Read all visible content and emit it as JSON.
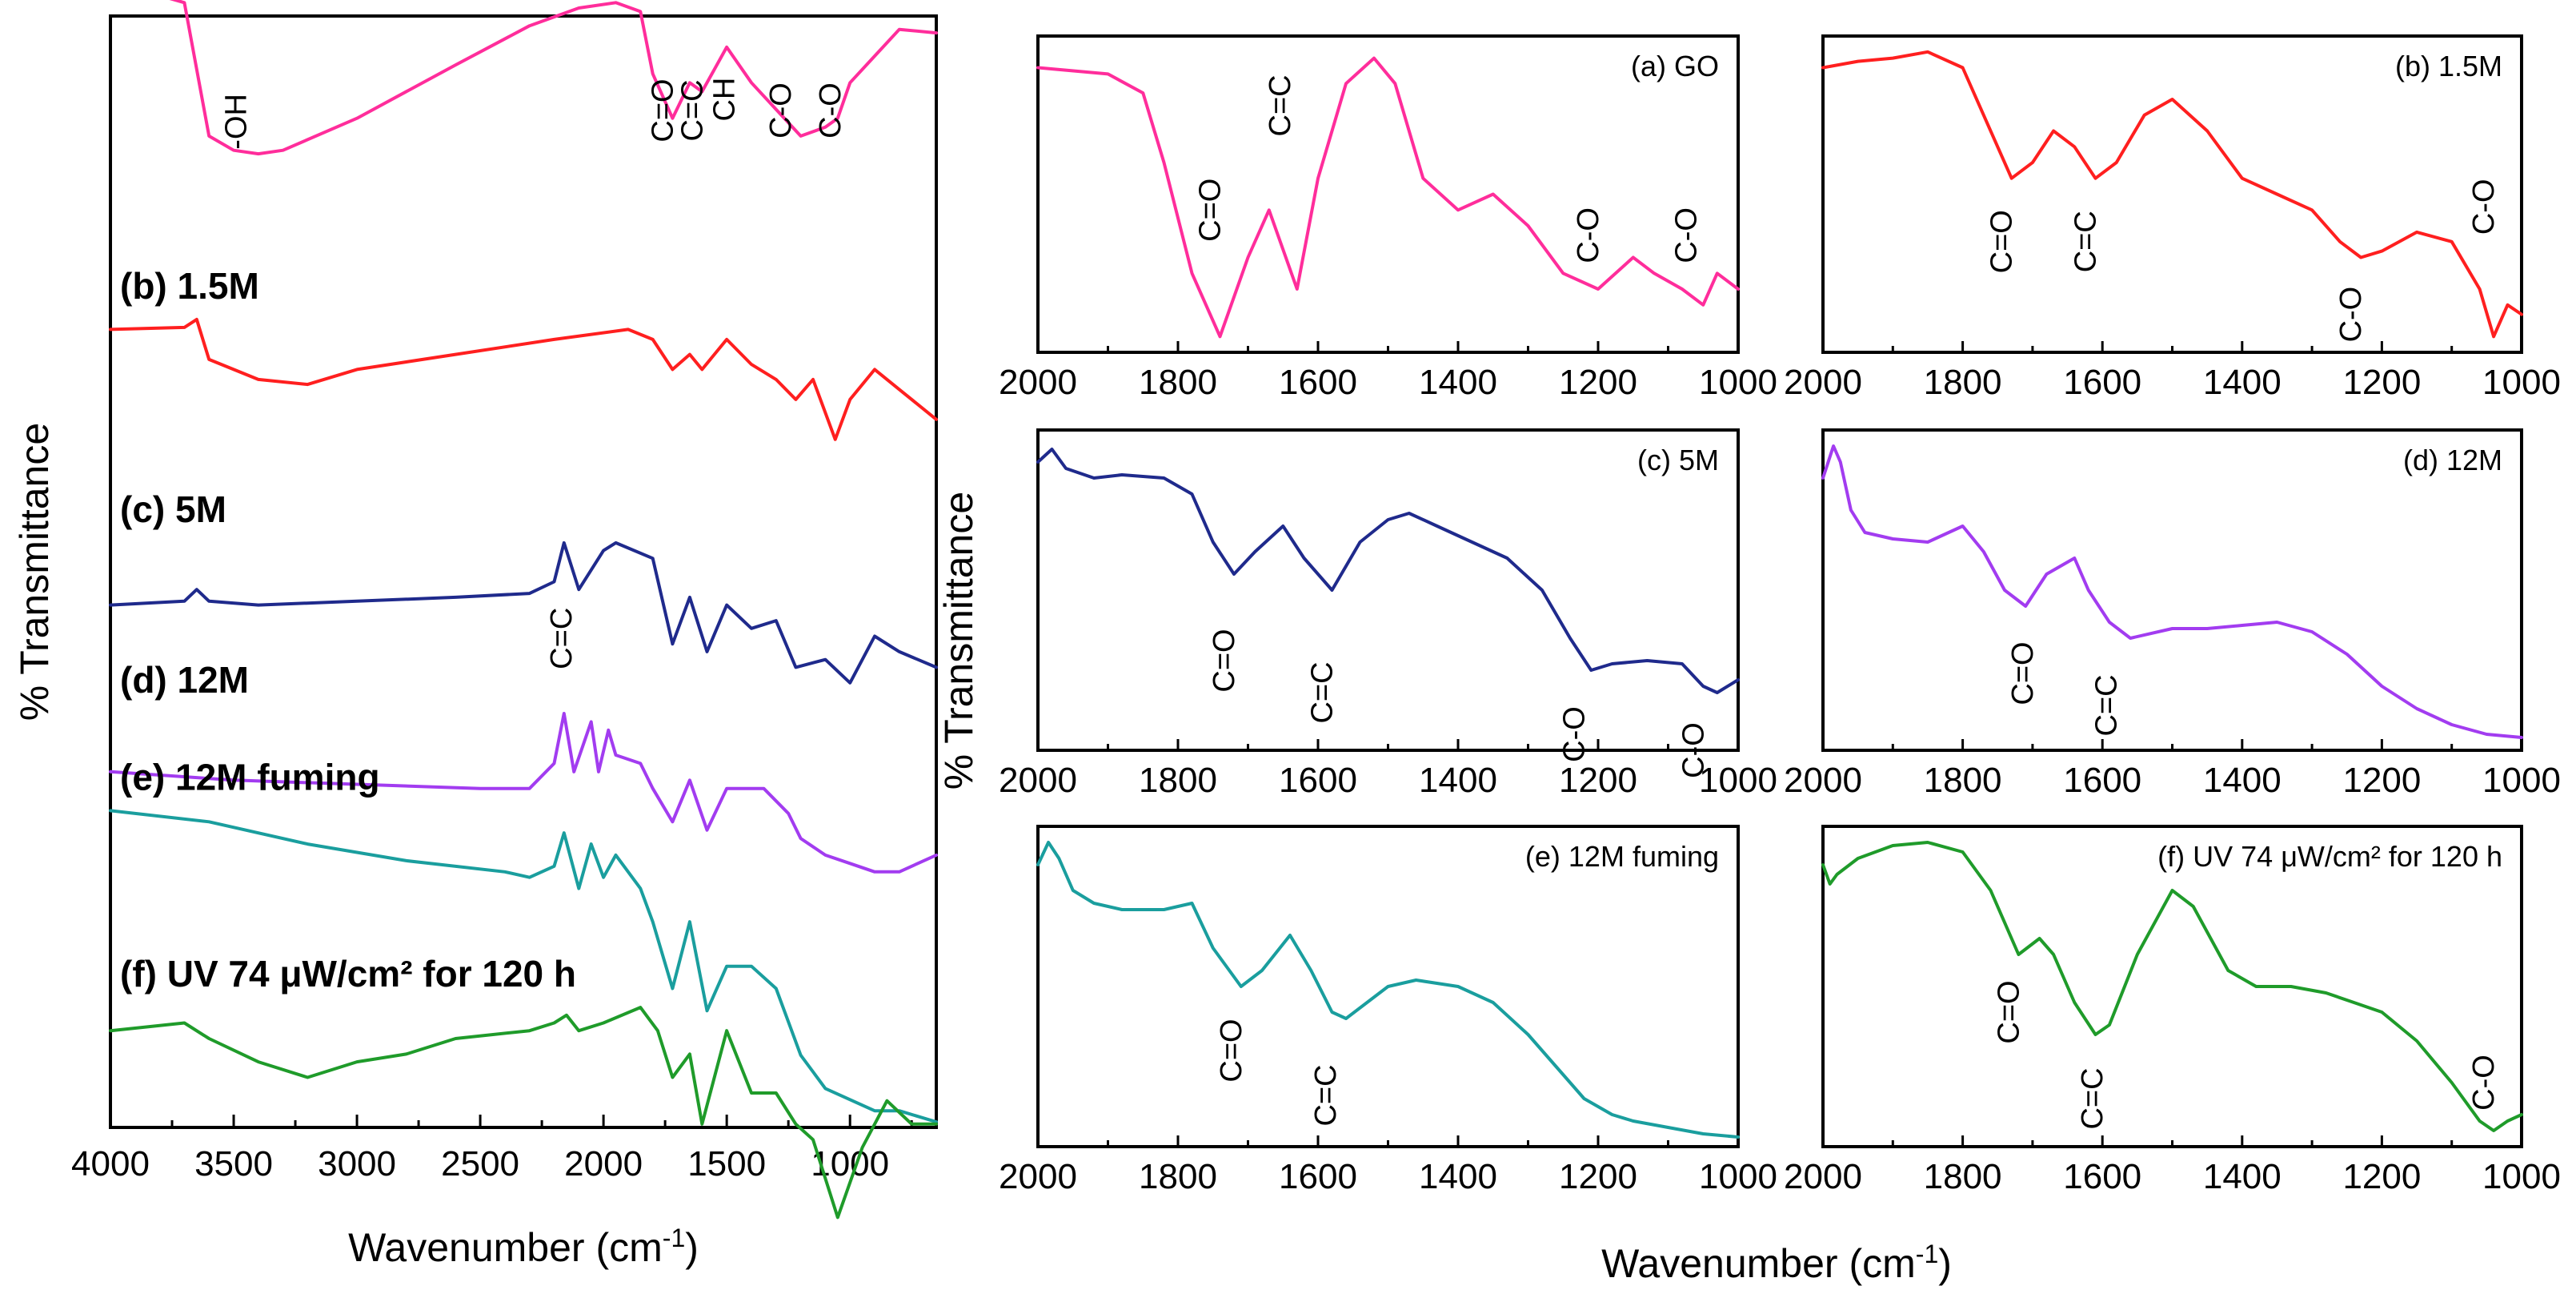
{
  "colors": {
    "a": "#ff2d9b",
    "b": "#ff1f1f",
    "c": "#1f2a8c",
    "d": "#a23cf0",
    "e": "#1a9e9e",
    "f": "#1f9b2a"
  },
  "chart_data": [
    {
      "type": "line",
      "title": "",
      "xlabel": "Wavenumber (cm",
      "xlabel_sup": "-1",
      "xlabel_close": ")",
      "ylabel": "% Transmittance",
      "xlim": [
        4000,
        650
      ],
      "xticks": [
        "4000",
        "3500",
        "3000",
        "2500",
        "2000",
        "1500",
        "1000"
      ],
      "series": [
        {
          "key": "a",
          "name": "(a) GO",
          "offset": 0.86,
          "scale": 0.16,
          "annotations": [
            "-OH",
            "C=O",
            "C=C",
            "CH",
            "C-O",
            "C-O"
          ],
          "x": [
            4000,
            3800,
            3700,
            3600,
            3500,
            3400,
            3300,
            3000,
            2600,
            2300,
            2100,
            1950,
            1850,
            1800,
            1720,
            1650,
            1600,
            1500,
            1400,
            1300,
            1200,
            1100,
            1050,
            1000,
            900,
            800,
            650
          ],
          "y": [
            1.0,
            0.99,
            0.95,
            0.2,
            0.12,
            0.1,
            0.12,
            0.3,
            0.6,
            0.82,
            0.92,
            0.95,
            0.9,
            0.55,
            0.3,
            0.5,
            0.45,
            0.7,
            0.5,
            0.35,
            0.2,
            0.25,
            0.3,
            0.5,
            0.65,
            0.8,
            0.78
          ]
        },
        {
          "key": "b",
          "name": "(b) 1.5M",
          "offset": 0.655,
          "scale": 0.09,
          "annotations": [],
          "x": [
            4000,
            3700,
            3650,
            3600,
            3400,
            3200,
            3000,
            2600,
            2200,
            1900,
            1800,
            1720,
            1650,
            1600,
            1500,
            1400,
            1300,
            1220,
            1150,
            1060,
            1000,
            900,
            800,
            650
          ],
          "y": [
            0.7,
            0.72,
            0.8,
            0.4,
            0.2,
            0.15,
            0.3,
            0.45,
            0.6,
            0.7,
            0.6,
            0.3,
            0.45,
            0.3,
            0.6,
            0.35,
            0.2,
            0.0,
            0.2,
            -0.4,
            0.0,
            0.3,
            0.1,
            -0.2
          ]
        },
        {
          "key": "c",
          "name": "(c) 5M",
          "offset": 0.47,
          "scale": 0.07,
          "annotations": [
            "C=C"
          ],
          "x": [
            4000,
            3700,
            3650,
            3600,
            3400,
            3000,
            2600,
            2300,
            2200,
            2160,
            2100,
            2000,
            1950,
            1800,
            1720,
            1650,
            1580,
            1500,
            1400,
            1300,
            1220,
            1100,
            1000,
            900,
            800,
            650
          ],
          "y": [
            0.0,
            0.05,
            0.2,
            0.05,
            0.0,
            0.05,
            0.1,
            0.15,
            0.3,
            0.8,
            0.2,
            0.7,
            0.8,
            0.6,
            -0.5,
            0.1,
            -0.6,
            0.0,
            -0.3,
            -0.2,
            -0.8,
            -0.7,
            -1.0,
            -0.4,
            -0.6,
            -0.8
          ]
        },
        {
          "key": "d",
          "name": "(d) 12M",
          "offset": 0.305,
          "scale": 0.075,
          "annotations": [],
          "x": [
            4000,
            3500,
            3000,
            2500,
            2300,
            2200,
            2160,
            2120,
            2050,
            2020,
            1980,
            1950,
            1850,
            1800,
            1720,
            1650,
            1580,
            1500,
            1350,
            1250,
            1200,
            1100,
            1000,
            900,
            800,
            650
          ],
          "y": [
            0.2,
            0.1,
            0.05,
            0.0,
            0.0,
            0.3,
            0.9,
            0.2,
            0.8,
            0.2,
            0.7,
            0.4,
            0.3,
            0.0,
            -0.4,
            0.1,
            -0.5,
            0.0,
            0.0,
            -0.3,
            -0.6,
            -0.8,
            -0.9,
            -1.0,
            -1.0,
            -0.8
          ]
        },
        {
          "key": "e",
          "name": "(e) 12M fuming",
          "offset": 0.185,
          "scale": 0.1,
          "annotations": [],
          "x": [
            4000,
            3600,
            3200,
            2800,
            2400,
            2300,
            2200,
            2160,
            2100,
            2050,
            2000,
            1950,
            1850,
            1800,
            1720,
            1650,
            1580,
            1500,
            1400,
            1300,
            1200,
            1100,
            1000,
            900,
            800,
            650
          ],
          "y": [
            1.0,
            0.9,
            0.7,
            0.55,
            0.45,
            0.4,
            0.5,
            0.8,
            0.3,
            0.7,
            0.4,
            0.6,
            0.3,
            0.0,
            -0.6,
            0.0,
            -0.8,
            -0.4,
            -0.4,
            -0.6,
            -1.2,
            -1.5,
            -1.6,
            -1.7,
            -1.7,
            -1.8
          ]
        },
        {
          "key": "f",
          "name": "(f) UV 74 μW/cm² for 120 h",
          "offset": 0.045,
          "scale": 0.07,
          "annotations": [],
          "x": [
            4000,
            3700,
            3600,
            3400,
            3200,
            3000,
            2800,
            2600,
            2300,
            2200,
            2150,
            2100,
            2000,
            1850,
            1780,
            1720,
            1650,
            1600,
            1500,
            1400,
            1300,
            1220,
            1150,
            1050,
            950,
            850,
            750,
            650
          ],
          "y": [
            0.6,
            0.7,
            0.5,
            0.2,
            0.0,
            0.2,
            0.3,
            0.5,
            0.6,
            0.7,
            0.8,
            0.6,
            0.7,
            0.9,
            0.6,
            0.0,
            0.3,
            -0.6,
            0.6,
            -0.2,
            -0.2,
            -0.6,
            -0.8,
            -1.8,
            -0.9,
            -0.3,
            -0.6,
            -0.6
          ]
        }
      ]
    },
    {
      "type": "line",
      "title": "(a) GO",
      "series_key": "a",
      "xlim": [
        2000,
        1000
      ],
      "xticks": [
        "2000",
        "1800",
        "1600",
        "1400",
        "1200",
        "1000"
      ],
      "annotations": [
        "C=O",
        "C=C",
        "C-O",
        "C-O"
      ],
      "x": [
        2000,
        1900,
        1850,
        1820,
        1780,
        1740,
        1700,
        1670,
        1630,
        1600,
        1560,
        1520,
        1490,
        1450,
        1400,
        1350,
        1300,
        1250,
        1200,
        1150,
        1120,
        1080,
        1050,
        1030,
        1000
      ],
      "y": [
        0.9,
        0.88,
        0.82,
        0.6,
        0.25,
        0.05,
        0.3,
        0.45,
        0.2,
        0.55,
        0.85,
        0.93,
        0.85,
        0.55,
        0.45,
        0.5,
        0.4,
        0.25,
        0.2,
        0.3,
        0.25,
        0.2,
        0.15,
        0.25,
        0.2
      ]
    },
    {
      "type": "line",
      "title": "(b) 1.5M",
      "series_key": "b",
      "xlim": [
        2000,
        1000
      ],
      "xticks": [
        "2000",
        "1800",
        "1600",
        "1400",
        "1200",
        "1000"
      ],
      "annotations": [
        "C=O",
        "C=C",
        "C-O",
        "C-O"
      ],
      "x": [
        2000,
        1950,
        1900,
        1850,
        1800,
        1770,
        1730,
        1700,
        1670,
        1640,
        1610,
        1580,
        1540,
        1500,
        1450,
        1400,
        1350,
        1300,
        1260,
        1230,
        1200,
        1150,
        1100,
        1060,
        1040,
        1020,
        1000
      ],
      "y": [
        0.9,
        0.92,
        0.93,
        0.95,
        0.9,
        0.75,
        0.55,
        0.6,
        0.7,
        0.65,
        0.55,
        0.6,
        0.75,
        0.8,
        0.7,
        0.55,
        0.5,
        0.45,
        0.35,
        0.3,
        0.32,
        0.38,
        0.35,
        0.2,
        0.05,
        0.15,
        0.12
      ]
    },
    {
      "type": "line",
      "title": "(c) 5M",
      "series_key": "c",
      "xlim": [
        2000,
        1000
      ],
      "xticks": [
        "2000",
        "1800",
        "1600",
        "1400",
        "1200",
        "1000"
      ],
      "annotations": [
        "C=O",
        "C=C",
        "C-O",
        "C-O"
      ],
      "x": [
        2000,
        1980,
        1960,
        1920,
        1880,
        1820,
        1780,
        1750,
        1720,
        1690,
        1650,
        1620,
        1580,
        1540,
        1500,
        1470,
        1430,
        1380,
        1330,
        1280,
        1240,
        1210,
        1180,
        1130,
        1080,
        1050,
        1030,
        1000
      ],
      "y": [
        0.9,
        0.94,
        0.88,
        0.85,
        0.86,
        0.85,
        0.8,
        0.65,
        0.55,
        0.62,
        0.7,
        0.6,
        0.5,
        0.65,
        0.72,
        0.74,
        0.7,
        0.65,
        0.6,
        0.5,
        0.35,
        0.25,
        0.27,
        0.28,
        0.27,
        0.2,
        0.18,
        0.22
      ]
    },
    {
      "type": "line",
      "title": "(d) 12M",
      "series_key": "d",
      "xlim": [
        2000,
        1000
      ],
      "xticks": [
        "2000",
        "1800",
        "1600",
        "1400",
        "1200",
        "1000"
      ],
      "annotations": [
        "C=O",
        "C=C"
      ],
      "x": [
        2000,
        1985,
        1975,
        1960,
        1940,
        1900,
        1850,
        1800,
        1770,
        1740,
        1710,
        1680,
        1640,
        1620,
        1590,
        1560,
        1500,
        1450,
        1400,
        1350,
        1300,
        1250,
        1200,
        1150,
        1100,
        1050,
        1000
      ],
      "y": [
        0.85,
        0.95,
        0.9,
        0.75,
        0.68,
        0.66,
        0.65,
        0.7,
        0.62,
        0.5,
        0.45,
        0.55,
        0.6,
        0.5,
        0.4,
        0.35,
        0.38,
        0.38,
        0.39,
        0.4,
        0.37,
        0.3,
        0.2,
        0.13,
        0.08,
        0.05,
        0.04
      ]
    },
    {
      "type": "line",
      "title": "(e) 12M fuming",
      "series_key": "e",
      "xlim": [
        2000,
        1000
      ],
      "xticks": [
        "2000",
        "1800",
        "1600",
        "1400",
        "1200",
        "1000"
      ],
      "annotations": [
        "C=O",
        "C=C"
      ],
      "x": [
        2000,
        1985,
        1970,
        1950,
        1920,
        1880,
        1820,
        1780,
        1750,
        1710,
        1680,
        1640,
        1610,
        1580,
        1560,
        1500,
        1460,
        1400,
        1350,
        1300,
        1260,
        1220,
        1180,
        1150,
        1100,
        1050,
        1000
      ],
      "y": [
        0.88,
        0.95,
        0.9,
        0.8,
        0.76,
        0.74,
        0.74,
        0.76,
        0.62,
        0.5,
        0.55,
        0.66,
        0.55,
        0.42,
        0.4,
        0.5,
        0.52,
        0.5,
        0.45,
        0.35,
        0.25,
        0.15,
        0.1,
        0.08,
        0.06,
        0.04,
        0.03
      ]
    },
    {
      "type": "line",
      "title": "(f) UV 74 μW/cm² for 120 h",
      "series_key": "f",
      "xlim": [
        2000,
        1000
      ],
      "xticks": [
        "2000",
        "1800",
        "1600",
        "1400",
        "1200",
        "1000"
      ],
      "annotations": [
        "C=O",
        "C=C",
        "C-O"
      ],
      "x": [
        2000,
        1990,
        1980,
        1950,
        1900,
        1850,
        1800,
        1760,
        1720,
        1690,
        1670,
        1640,
        1610,
        1590,
        1550,
        1500,
        1470,
        1420,
        1380,
        1330,
        1280,
        1240,
        1200,
        1150,
        1100,
        1060,
        1040,
        1020,
        1000
      ],
      "y": [
        0.88,
        0.82,
        0.85,
        0.9,
        0.94,
        0.95,
        0.92,
        0.8,
        0.6,
        0.65,
        0.6,
        0.45,
        0.35,
        0.38,
        0.6,
        0.8,
        0.75,
        0.55,
        0.5,
        0.5,
        0.48,
        0.45,
        0.42,
        0.33,
        0.2,
        0.08,
        0.05,
        0.08,
        0.1
      ]
    }
  ]
}
